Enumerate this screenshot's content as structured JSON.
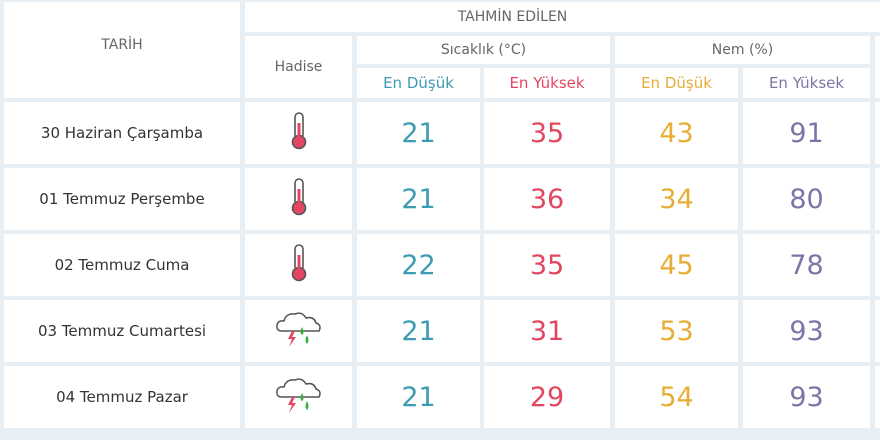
{
  "header": {
    "tarih": "TARİH",
    "tahmin": "TAHMİN EDİLEN",
    "hadise": "Hadise",
    "sicaklik": "Sıcaklık (°C)",
    "nem": "Nem (%)",
    "en_dusuk": "En Düşük",
    "en_yuksek": "En Yüksek"
  },
  "colors": {
    "temp_low": "#3d9bb2",
    "temp_high": "#e34660",
    "hum_low": "#e7ad35",
    "hum_high": "#7a76a6"
  },
  "rows": [
    {
      "date": "30 Haziran Çarşamba",
      "icon": "thermometer-icon",
      "t_low": "21",
      "t_high": "35",
      "h_low": "43",
      "h_high": "91"
    },
    {
      "date": "01 Temmuz Perşembe",
      "icon": "thermometer-icon",
      "t_low": "21",
      "t_high": "36",
      "h_low": "34",
      "h_high": "80"
    },
    {
      "date": "02 Temmuz Cuma",
      "icon": "thermometer-icon",
      "t_low": "22",
      "t_high": "35",
      "h_low": "45",
      "h_high": "78"
    },
    {
      "date": "03 Temmuz Cumartesi",
      "icon": "thunderstorm-rain-icon",
      "t_low": "21",
      "t_high": "31",
      "h_low": "53",
      "h_high": "93"
    },
    {
      "date": "04 Temmuz Pazar",
      "icon": "thunderstorm-rain-icon",
      "t_low": "21",
      "t_high": "29",
      "h_low": "54",
      "h_high": "93"
    }
  ]
}
